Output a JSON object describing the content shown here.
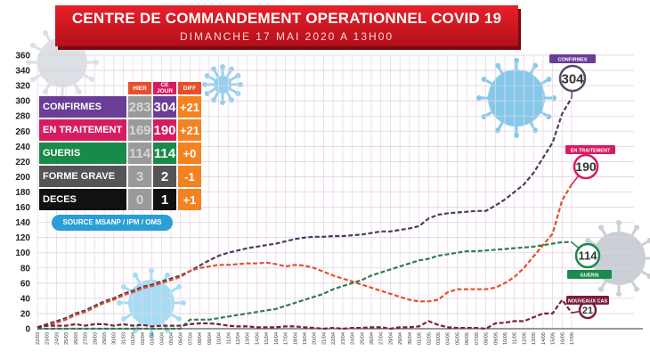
{
  "header": {
    "title": "CENTRE DE COMMANDEMENT OPERATIONNEL COVID 19",
    "subtitle": "DIMANCHE 17 MAI 2020 A 13H00"
  },
  "summary": {
    "col_hier": "HIER",
    "col_ce_jour": "CE JOUR",
    "col_diff": "DIFF",
    "rows": [
      {
        "label": "CONFIRMES",
        "hier": "283",
        "ce_jour": "304",
        "diff": "+21",
        "color": "#6a3d97"
      },
      {
        "label": "EN TRAITEMENT",
        "hier": "169",
        "ce_jour": "190",
        "diff": "+21",
        "color": "#d81b60"
      },
      {
        "label": "GUERIS",
        "hier": "114",
        "ce_jour": "114",
        "diff": "+0",
        "color": "#1a8a4a"
      },
      {
        "label": "FORME GRAVE",
        "hier": "3",
        "ce_jour": "2",
        "diff": "-1",
        "color": "#555555"
      },
      {
        "label": "DECES",
        "hier": "0",
        "ce_jour": "1",
        "diff": "+1",
        "color": "#111111"
      }
    ]
  },
  "source": "SOURCE MSANP / IPM / OMS",
  "chart_data": {
    "type": "line",
    "ylim": [
      0,
      360
    ],
    "yticks": [
      0,
      20,
      40,
      60,
      80,
      100,
      120,
      140,
      160,
      180,
      200,
      220,
      240,
      260,
      280,
      300,
      320,
      340,
      360
    ],
    "categories": [
      "22/03",
      "23/03",
      "24/03",
      "25/03",
      "26/03",
      "27/03",
      "28/03",
      "29/03",
      "30/03",
      "31/03",
      "01/04",
      "02/04",
      "03/04",
      "04/04",
      "05/04",
      "06/04",
      "07/04",
      "08/04",
      "09/04",
      "10/04",
      "11/04",
      "12/04",
      "13/04",
      "14/04",
      "15/04",
      "16/04",
      "17/04",
      "18/04",
      "19/04",
      "20/04",
      "21/04",
      "22/04",
      "23/04",
      "24/04",
      "25/04",
      "26/04",
      "27/04",
      "28/04",
      "29/04",
      "30/04",
      "01/05",
      "02/05",
      "03/05",
      "04/05",
      "05/05",
      "06/05",
      "07/05",
      "08/05",
      "09/05",
      "10/05",
      "11/05",
      "12/05",
      "13/05",
      "14/05",
      "15/05",
      "16/05",
      "17/05"
    ],
    "series": [
      {
        "name": "CONFIRMES",
        "color": "#4a3d5c",
        "end_label": "304",
        "values": [
          2,
          6,
          10,
          14,
          20,
          24,
          30,
          36,
          40,
          46,
          50,
          55,
          58,
          62,
          66,
          70,
          76,
          83,
          90,
          96,
          100,
          103,
          106,
          108,
          110,
          112,
          115,
          118,
          120,
          121,
          121,
          122,
          122,
          123,
          124,
          126,
          128,
          128,
          130,
          132,
          135,
          145,
          150,
          152,
          153,
          154,
          155,
          155,
          162,
          170,
          180,
          190,
          205,
          225,
          245,
          283,
          304
        ]
      },
      {
        "name": "EN TRAITEMENT",
        "color": "#e5502a",
        "end_label": "190",
        "callout": "EN TRAITEMENT",
        "values": [
          2,
          4,
          8,
          12,
          18,
          22,
          28,
          34,
          38,
          44,
          48,
          53,
          56,
          60,
          64,
          68,
          76,
          80,
          82,
          84,
          84,
          85,
          86,
          86,
          87,
          85,
          82,
          84,
          83,
          80,
          75,
          70,
          66,
          62,
          58,
          54,
          50,
          46,
          42,
          38,
          36,
          36,
          38,
          48,
          52,
          52,
          52,
          52,
          54,
          60,
          68,
          80,
          95,
          110,
          125,
          169,
          190
        ]
      },
      {
        "name": "GUERIS",
        "color": "#2e7d4f",
        "end_label": "114",
        "callout": "GUERIS",
        "values": [
          0,
          0,
          0,
          0,
          0,
          0,
          0,
          0,
          0,
          0,
          0,
          0,
          0,
          0,
          0,
          0,
          12,
          12,
          12,
          14,
          16,
          18,
          20,
          22,
          24,
          26,
          30,
          34,
          38,
          42,
          46,
          52,
          56,
          60,
          64,
          70,
          74,
          78,
          82,
          86,
          90,
          92,
          96,
          98,
          100,
          102,
          102,
          103,
          104,
          105,
          106,
          107,
          108,
          110,
          112,
          114,
          114
        ]
      },
      {
        "name": "NOUVEAUX CAS",
        "color": "#7a1f3a",
        "end_label": "21",
        "callout": "NOUVEAUX CAS",
        "values": [
          2,
          4,
          4,
          4,
          6,
          4,
          6,
          6,
          4,
          6,
          4,
          5,
          3,
          4,
          4,
          4,
          6,
          7,
          7,
          6,
          4,
          3,
          3,
          2,
          2,
          2,
          3,
          3,
          2,
          1,
          0,
          1,
          0,
          1,
          1,
          2,
          2,
          0,
          2,
          2,
          3,
          10,
          5,
          2,
          1,
          1,
          1,
          0,
          7,
          8,
          10,
          10,
          15,
          20,
          20,
          38,
          21
        ]
      }
    ],
    "top_callout": "CONFIRMES"
  }
}
